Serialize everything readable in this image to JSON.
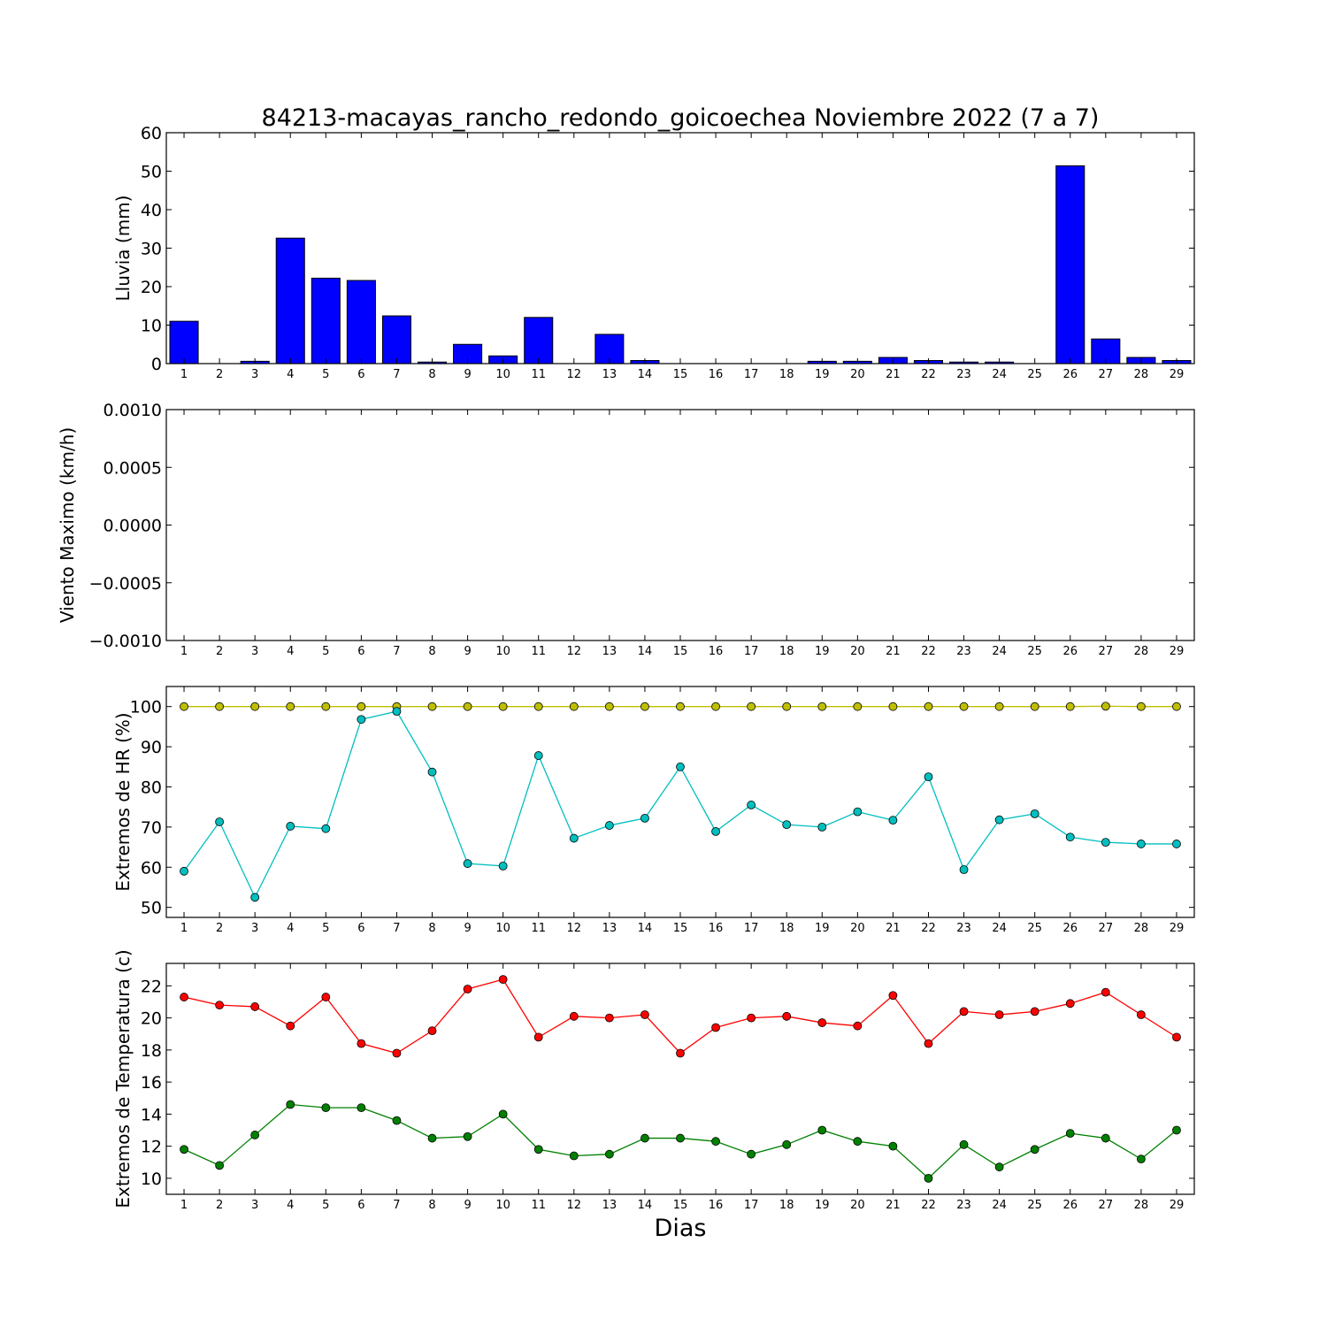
{
  "figure": {
    "title": "84213-macayas_rancho_redondo_goicoechea Noviembre 2022  (7 a 7)",
    "xlabel": "Dias"
  },
  "chart_data": [
    {
      "type": "bar",
      "ylabel": "Lluvia (mm)",
      "categories": [
        "1",
        "2",
        "3",
        "4",
        "5",
        "6",
        "7",
        "8",
        "9",
        "10",
        "11",
        "12",
        "13",
        "14",
        "15",
        "16",
        "17",
        "18",
        "19",
        "20",
        "21",
        "22",
        "23",
        "24",
        "25",
        "26",
        "27",
        "28",
        "29"
      ],
      "values": [
        11.0,
        0.0,
        0.6,
        32.6,
        22.2,
        21.6,
        12.4,
        0.4,
        5.0,
        2.0,
        12.0,
        0.0,
        7.6,
        0.8,
        0.0,
        0.0,
        0.0,
        0.0,
        0.6,
        0.6,
        1.6,
        0.8,
        0.4,
        0.4,
        0.0,
        51.4,
        6.4,
        1.6,
        0.8
      ],
      "ylim": [
        0,
        60
      ],
      "yticks": [
        0,
        10,
        20,
        30,
        40,
        50,
        60
      ],
      "ytick_labels": [
        "0",
        "10",
        "20",
        "30",
        "40",
        "50",
        "60"
      ],
      "color": "#0000ff"
    },
    {
      "type": "line",
      "ylabel": "Viento Maximo (km/h)",
      "categories": [
        "1",
        "2",
        "3",
        "4",
        "5",
        "6",
        "7",
        "8",
        "9",
        "10",
        "11",
        "12",
        "13",
        "14",
        "15",
        "16",
        "17",
        "18",
        "19",
        "20",
        "21",
        "22",
        "23",
        "24",
        "25",
        "26",
        "27",
        "28",
        "29"
      ],
      "series": [],
      "ylim": [
        -0.001,
        0.001
      ],
      "yticks": [
        -0.001,
        -0.0005,
        0.0,
        0.0005,
        0.001
      ],
      "ytick_labels": [
        "−0.0010",
        "−0.0005",
        "0.0000",
        "0.0005",
        "0.0010"
      ]
    },
    {
      "type": "line",
      "ylabel": "Extremos de HR (%)",
      "categories": [
        "1",
        "2",
        "3",
        "4",
        "5",
        "6",
        "7",
        "8",
        "9",
        "10",
        "11",
        "12",
        "13",
        "14",
        "15",
        "16",
        "17",
        "18",
        "19",
        "20",
        "21",
        "22",
        "23",
        "24",
        "25",
        "26",
        "27",
        "28",
        "29"
      ],
      "series": [
        {
          "values": [
            100,
            100,
            100,
            100,
            100,
            100,
            100,
            100,
            100,
            100,
            100,
            100,
            100,
            100,
            100,
            100,
            100,
            100,
            100,
            100,
            100,
            100,
            100,
            100,
            100,
            100,
            100.1,
            100,
            100
          ],
          "color": "#bfbf00"
        },
        {
          "values": [
            59.0,
            71.3,
            52.5,
            70.2,
            69.6,
            96.8,
            98.8,
            83.7,
            60.9,
            60.3,
            87.8,
            67.2,
            70.4,
            72.2,
            85.0,
            68.9,
            75.5,
            70.6,
            70.0,
            73.8,
            71.7,
            82.5,
            59.4,
            71.8,
            73.3,
            67.5,
            66.2,
            65.8,
            65.8
          ],
          "color": "#00bfbf"
        }
      ],
      "ylim": [
        47.5,
        105
      ],
      "yticks": [
        50,
        60,
        70,
        80,
        90,
        100
      ],
      "ytick_labels": [
        "50",
        "60",
        "70",
        "80",
        "90",
        "100"
      ]
    },
    {
      "type": "line",
      "ylabel": "Extremos de Temperatura (c)",
      "categories": [
        "1",
        "2",
        "3",
        "4",
        "5",
        "6",
        "7",
        "8",
        "9",
        "10",
        "11",
        "12",
        "13",
        "14",
        "15",
        "16",
        "17",
        "18",
        "19",
        "20",
        "21",
        "22",
        "23",
        "24",
        "25",
        "26",
        "27",
        "28",
        "29"
      ],
      "series": [
        {
          "values": [
            21.3,
            20.8,
            20.7,
            19.5,
            21.3,
            18.4,
            17.8,
            19.2,
            21.8,
            22.4,
            18.8,
            20.1,
            20.0,
            20.2,
            17.8,
            19.4,
            20.0,
            20.1,
            19.7,
            19.5,
            21.4,
            18.4,
            20.4,
            20.2,
            20.4,
            20.9,
            21.6,
            20.2,
            18.8
          ],
          "color": "#ff0000"
        },
        {
          "values": [
            11.8,
            10.8,
            12.7,
            14.6,
            14.4,
            14.4,
            13.6,
            12.5,
            12.6,
            14.0,
            11.8,
            11.4,
            11.5,
            12.5,
            12.5,
            12.3,
            11.5,
            12.1,
            13.0,
            12.3,
            12.0,
            10.0,
            12.1,
            10.7,
            11.8,
            12.8,
            12.5,
            11.2,
            13.0
          ],
          "color": "#008000"
        }
      ],
      "ylim": [
        9,
        23.4
      ],
      "yticks": [
        10,
        12,
        14,
        16,
        18,
        20,
        22
      ],
      "ytick_labels": [
        "10",
        "12",
        "14",
        "16",
        "18",
        "20",
        "22"
      ]
    }
  ]
}
